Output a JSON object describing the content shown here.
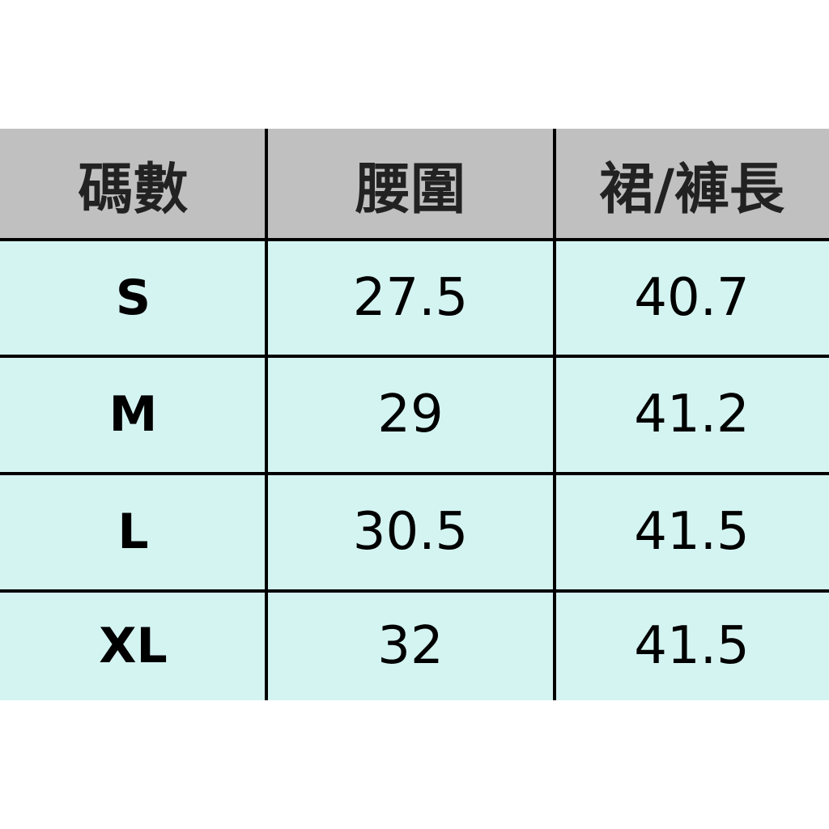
{
  "table": {
    "headers": [
      "碼數",
      "腰圍",
      "裙/褲長"
    ],
    "rows": [
      [
        "S",
        "27.5",
        "40.7"
      ],
      [
        "M",
        "29",
        "41.2"
      ],
      [
        "L",
        "30.5",
        "41.5"
      ],
      [
        "XL",
        "32",
        "41.5"
      ]
    ]
  },
  "colors": {
    "header_bg": "#c0c0c0",
    "row_bg": "#d4f4f2",
    "border": "#000000"
  }
}
